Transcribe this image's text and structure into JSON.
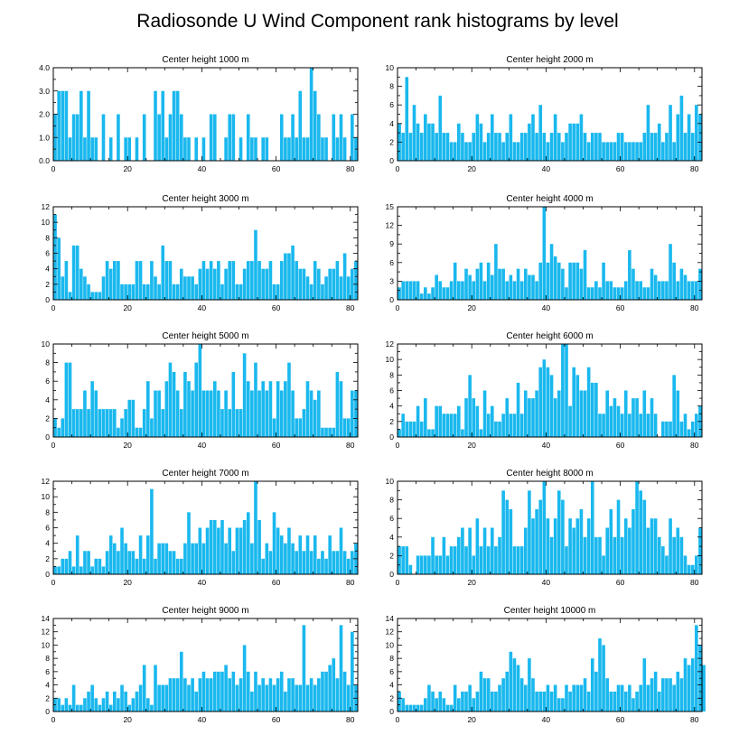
{
  "figure": {
    "title": "Radiosonde U Wind Component rank histograms by level",
    "bar_color": "#1ab8ee"
  },
  "chart_data": [
    {
      "type": "bar",
      "title": "Center height 1000 m",
      "xlim": [
        0,
        82
      ],
      "ylim": [
        0,
        4
      ],
      "xticks": [
        "0",
        "20",
        "40",
        "60",
        "80"
      ],
      "yticks": [
        "0.0",
        "1.0",
        "2.0",
        "3.0",
        "4.0"
      ],
      "values": [
        2,
        3,
        3,
        3,
        1,
        2,
        2,
        3,
        1,
        3,
        1,
        1,
        0,
        2,
        0,
        1,
        0,
        2,
        0,
        1,
        1,
        0,
        1,
        0,
        2,
        0,
        0,
        3,
        2,
        3,
        1,
        2,
        3,
        3,
        2,
        1,
        1,
        0,
        1,
        0,
        1,
        0,
        2,
        2,
        0,
        0,
        1,
        2,
        2,
        0,
        1,
        0,
        2,
        1,
        1,
        0,
        1,
        1,
        0,
        0,
        0,
        2,
        1,
        1,
        2,
        1,
        3,
        1,
        1,
        4,
        3,
        2,
        1,
        1,
        0,
        2,
        1,
        2,
        1,
        0,
        2,
        1
      ]
    },
    {
      "type": "bar",
      "title": "Center height 2000 m",
      "xlim": [
        0,
        82
      ],
      "ylim": [
        0,
        10
      ],
      "xticks": [
        "0",
        "20",
        "40",
        "60",
        "80"
      ],
      "yticks": [
        "0",
        "2",
        "4",
        "6",
        "8",
        "10"
      ],
      "values": [
        4,
        3,
        9,
        3,
        6,
        4,
        3,
        5,
        4,
        4,
        3,
        7,
        3,
        3,
        2,
        2,
        4,
        3,
        2,
        2,
        3,
        5,
        4,
        2,
        3,
        5,
        3,
        3,
        2,
        3,
        5,
        2,
        2,
        3,
        3,
        4,
        5,
        3,
        6,
        3,
        2,
        3,
        5,
        3,
        2,
        3,
        4,
        4,
        4,
        5,
        3,
        2,
        3,
        3,
        3,
        2,
        2,
        2,
        2,
        3,
        3,
        2,
        2,
        2,
        2,
        2,
        3,
        6,
        3,
        3,
        4,
        2,
        3,
        6,
        2,
        5,
        7,
        3,
        5,
        3,
        6,
        5
      ]
    },
    {
      "type": "bar",
      "title": "Center height 3000 m",
      "xlim": [
        0,
        82
      ],
      "ylim": [
        0,
        12
      ],
      "xticks": [
        "0",
        "20",
        "40",
        "60",
        "80"
      ],
      "yticks": [
        "0",
        "2",
        "4",
        "6",
        "8",
        "10",
        "12"
      ],
      "values": [
        11,
        8,
        3,
        5,
        1,
        7,
        7,
        4,
        3,
        2,
        1,
        1,
        1,
        3,
        5,
        4,
        5,
        5,
        2,
        2,
        2,
        2,
        5,
        5,
        2,
        2,
        5,
        3,
        2,
        7,
        5,
        5,
        2,
        2,
        4,
        3,
        3,
        3,
        2,
        4,
        5,
        4,
        5,
        4,
        5,
        2,
        4,
        5,
        5,
        2,
        2,
        4,
        5,
        5,
        9,
        5,
        4,
        4,
        5,
        2,
        2,
        5,
        6,
        6,
        7,
        5,
        4,
        4,
        3,
        2,
        5,
        4,
        2,
        3,
        4,
        4,
        5,
        3,
        6,
        3,
        4,
        5
      ]
    },
    {
      "type": "bar",
      "title": "Center height 4000 m",
      "xlim": [
        0,
        82
      ],
      "ylim": [
        0,
        15
      ],
      "xticks": [
        "0",
        "20",
        "40",
        "60",
        "80"
      ],
      "yticks": [
        "0",
        "3",
        "6",
        "9",
        "12",
        "15"
      ],
      "values": [
        2,
        3,
        3,
        3,
        3,
        3,
        1,
        2,
        1,
        2,
        4,
        3,
        2,
        2,
        3,
        6,
        3,
        3,
        5,
        4,
        3,
        5,
        6,
        3,
        6,
        4,
        9,
        5,
        5,
        3,
        4,
        3,
        5,
        3,
        5,
        4,
        4,
        3,
        6,
        15,
        6,
        9,
        7,
        6,
        5,
        2,
        6,
        6,
        6,
        5,
        8,
        2,
        2,
        3,
        2,
        6,
        3,
        3,
        2,
        2,
        2,
        3,
        8,
        5,
        3,
        3,
        2,
        2,
        5,
        4,
        3,
        3,
        3,
        9,
        6,
        3,
        5,
        4,
        3,
        3,
        3,
        5
      ]
    },
    {
      "type": "bar",
      "title": "Center height 5000 m",
      "xlim": [
        0,
        82
      ],
      "ylim": [
        0,
        10
      ],
      "xticks": [
        "0",
        "20",
        "40",
        "60",
        "80"
      ],
      "yticks": [
        "0",
        "2",
        "4",
        "6",
        "8",
        "10"
      ],
      "values": [
        2,
        1,
        2,
        8,
        8,
        3,
        3,
        3,
        5,
        3,
        6,
        5,
        3,
        3,
        3,
        3,
        3,
        1,
        2,
        3,
        4,
        4,
        1,
        1,
        3,
        6,
        2,
        5,
        5,
        3,
        6,
        8,
        7,
        5,
        3,
        7,
        6,
        5,
        8,
        10,
        5,
        5,
        5,
        6,
        5,
        3,
        5,
        3,
        7,
        3,
        3,
        9,
        6,
        5,
        8,
        5,
        6,
        5,
        6,
        2,
        6,
        5,
        6,
        8,
        5,
        2,
        2,
        3,
        6,
        5,
        4,
        5,
        1,
        1,
        1,
        1,
        7,
        6,
        2,
        2,
        5,
        5
      ]
    },
    {
      "type": "bar",
      "title": "Center height 6000 m",
      "xlim": [
        0,
        82
      ],
      "ylim": [
        0,
        12
      ],
      "xticks": [
        "0",
        "20",
        "40",
        "60",
        "80"
      ],
      "yticks": [
        "0",
        "2",
        "4",
        "6",
        "8",
        "10",
        "12"
      ],
      "values": [
        1,
        3,
        2,
        2,
        2,
        4,
        2,
        5,
        1,
        1,
        4,
        4,
        3,
        3,
        3,
        3,
        4,
        1,
        5,
        8,
        5,
        4,
        1,
        6,
        3,
        4,
        2,
        2,
        3,
        5,
        3,
        3,
        7,
        3,
        6,
        5,
        5,
        6,
        9,
        10,
        9,
        8,
        5,
        6,
        12,
        12,
        4,
        9,
        8,
        6,
        6,
        9,
        7,
        7,
        3,
        3,
        6,
        4,
        5,
        4,
        3,
        6,
        3,
        5,
        5,
        3,
        6,
        3,
        5,
        3,
        0,
        2,
        2,
        2,
        8,
        6,
        2,
        3,
        1,
        2,
        3,
        4
      ]
    },
    {
      "type": "bar",
      "title": "Center height 7000 m",
      "xlim": [
        0,
        82
      ],
      "ylim": [
        0,
        12
      ],
      "xticks": [
        "0",
        "20",
        "40",
        "60",
        "80"
      ],
      "yticks": [
        "0",
        "2",
        "4",
        "6",
        "8",
        "10",
        "12"
      ],
      "values": [
        1,
        1,
        2,
        2,
        3,
        1,
        5,
        1,
        3,
        3,
        1,
        2,
        2,
        1,
        3,
        5,
        4,
        3,
        6,
        4,
        3,
        3,
        2,
        5,
        2,
        5,
        11,
        2,
        4,
        4,
        4,
        3,
        3,
        2,
        2,
        4,
        8,
        4,
        4,
        6,
        4,
        6,
        7,
        7,
        6,
        7,
        4,
        6,
        3,
        6,
        6,
        7,
        8,
        4,
        12,
        7,
        2,
        4,
        3,
        8,
        6,
        5,
        4,
        6,
        4,
        3,
        5,
        3,
        5,
        3,
        5,
        2,
        3,
        2,
        5,
        3,
        3,
        6,
        3,
        2,
        3,
        4
      ]
    },
    {
      "type": "bar",
      "title": "Center height 8000 m",
      "xlim": [
        0,
        82
      ],
      "ylim": [
        0,
        10
      ],
      "xticks": [
        "0",
        "20",
        "40",
        "60",
        "80"
      ],
      "yticks": [
        "0",
        "2",
        "4",
        "6",
        "8",
        "10"
      ],
      "values": [
        3,
        3,
        3,
        1,
        0,
        2,
        2,
        2,
        2,
        4,
        2,
        2,
        4,
        2,
        3,
        3,
        4,
        5,
        3,
        5,
        2,
        6,
        3,
        5,
        3,
        5,
        3,
        4,
        9,
        8,
        7,
        3,
        3,
        3,
        5,
        9,
        6,
        7,
        8,
        10,
        6,
        4,
        6,
        9,
        8,
        3,
        6,
        5,
        6,
        7,
        4,
        6,
        10,
        4,
        4,
        2,
        5,
        7,
        4,
        8,
        4,
        6,
        5,
        7,
        10,
        9,
        8,
        5,
        6,
        6,
        4,
        3,
        2,
        6,
        4,
        5,
        4,
        2,
        1,
        1,
        2,
        5
      ]
    },
    {
      "type": "bar",
      "title": "Center height 9000 m",
      "xlim": [
        0,
        82
      ],
      "ylim": [
        0,
        14
      ],
      "xticks": [
        "0",
        "20",
        "40",
        "60",
        "80"
      ],
      "yticks": [
        "0",
        "2",
        "4",
        "6",
        "8",
        "10",
        "12",
        "14"
      ],
      "values": [
        2,
        2,
        1,
        2,
        1,
        4,
        1,
        1,
        2,
        3,
        4,
        2,
        1,
        2,
        3,
        1,
        3,
        2,
        4,
        3,
        1,
        2,
        3,
        4,
        7,
        2,
        1,
        7,
        4,
        4,
        4,
        5,
        5,
        5,
        9,
        5,
        4,
        5,
        3,
        5,
        6,
        5,
        5,
        6,
        6,
        6,
        7,
        5,
        6,
        4,
        5,
        10,
        6,
        3,
        6,
        4,
        5,
        4,
        5,
        4,
        5,
        6,
        3,
        5,
        5,
        4,
        4,
        13,
        4,
        5,
        4,
        5,
        6,
        6,
        7,
        8,
        5,
        13,
        6,
        4,
        12,
        4
      ]
    },
    {
      "type": "bar",
      "title": "Center height 10000 m",
      "xlim": [
        0,
        82
      ],
      "ylim": [
        0,
        14
      ],
      "xticks": [
        "0",
        "20",
        "40",
        "60",
        "80"
      ],
      "yticks": [
        "0",
        "2",
        "4",
        "6",
        "8",
        "10",
        "12",
        "14"
      ],
      "values": [
        3,
        2,
        1,
        1,
        1,
        1,
        1,
        2,
        4,
        3,
        2,
        3,
        2,
        1,
        1,
        4,
        2,
        3,
        3,
        4,
        2,
        3,
        6,
        5,
        5,
        3,
        3,
        4,
        5,
        6,
        9,
        8,
        7,
        5,
        4,
        8,
        5,
        3,
        3,
        3,
        4,
        3,
        4,
        2,
        2,
        4,
        3,
        4,
        4,
        4,
        5,
        3,
        8,
        6,
        11,
        10,
        5,
        3,
        3,
        4,
        4,
        3,
        4,
        2,
        3,
        4,
        8,
        4,
        5,
        6,
        3,
        5,
        5,
        5,
        4,
        6,
        5,
        8,
        7,
        8,
        13,
        10,
        7
      ]
    }
  ]
}
